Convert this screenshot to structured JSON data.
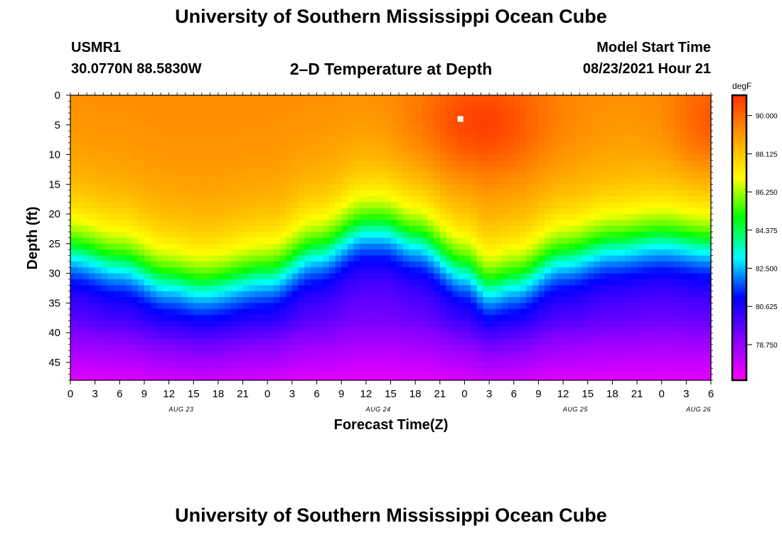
{
  "page": {
    "title_top": "University of Southern Mississippi Ocean Cube",
    "title_bottom": "University of Southern Mississippi Ocean Cube"
  },
  "header": {
    "station_id": "USMR1",
    "coordinates": "30.0770N  88.5830W",
    "plot_title": "2–D Temperature at Depth",
    "model_label": "Model Start Time",
    "model_time": "08/23/2021 Hour 21"
  },
  "colors": {
    "scale": [
      "#ff00ff",
      "#8a00ff",
      "#0000ff",
      "#00ffff",
      "#00ff00",
      "#ffff00",
      "#ff9900",
      "#ff3300"
    ],
    "marker": "#ffffff"
  },
  "chart_data": {
    "type": "heatmap",
    "title": "2–D Temperature at Depth",
    "xlabel": "Forecast Time(Z)",
    "ylabel": "Depth (ft)",
    "x_tick_labels": [
      "0",
      "3",
      "6",
      "9",
      "12",
      "15",
      "18",
      "21",
      "0",
      "3",
      "6",
      "9",
      "12",
      "15",
      "18",
      "21",
      "0",
      "3",
      "6",
      "9",
      "12",
      "15",
      "18",
      "21",
      "0",
      "3",
      "6"
    ],
    "date_labels": [
      {
        "label": "AUG 23",
        "hour": 13.5
      },
      {
        "label": "AUG 24",
        "hour": 37.5
      },
      {
        "label": "AUG 25",
        "hour": 61.5
      },
      {
        "label": "AUG 26",
        "hour": 76.5
      }
    ],
    "xlim": [
      0,
      78
    ],
    "ylim": [
      0,
      48
    ],
    "y_ticks": [
      0,
      5,
      10,
      15,
      20,
      25,
      30,
      35,
      40,
      45
    ],
    "colorbar": {
      "unit": "degF",
      "range": [
        77.0,
        91.0
      ],
      "ticks": [
        "90.000",
        "88.125",
        "86.250",
        "84.375",
        "82.500",
        "80.625",
        "78.750"
      ]
    },
    "thermocline": {
      "description": "Depth (ft) of the ~84.4 degF isotherm vs forecast hour",
      "hours": [
        0,
        6,
        12,
        16,
        24,
        30,
        36,
        38,
        42,
        48,
        51,
        54,
        60,
        66,
        72,
        78
      ],
      "depths": [
        25,
        27,
        30,
        31,
        29,
        25,
        21,
        21,
        23,
        28,
        31,
        30,
        26,
        24,
        23,
        24
      ]
    },
    "marker": {
      "hour": 47.5,
      "depth": 4
    }
  }
}
